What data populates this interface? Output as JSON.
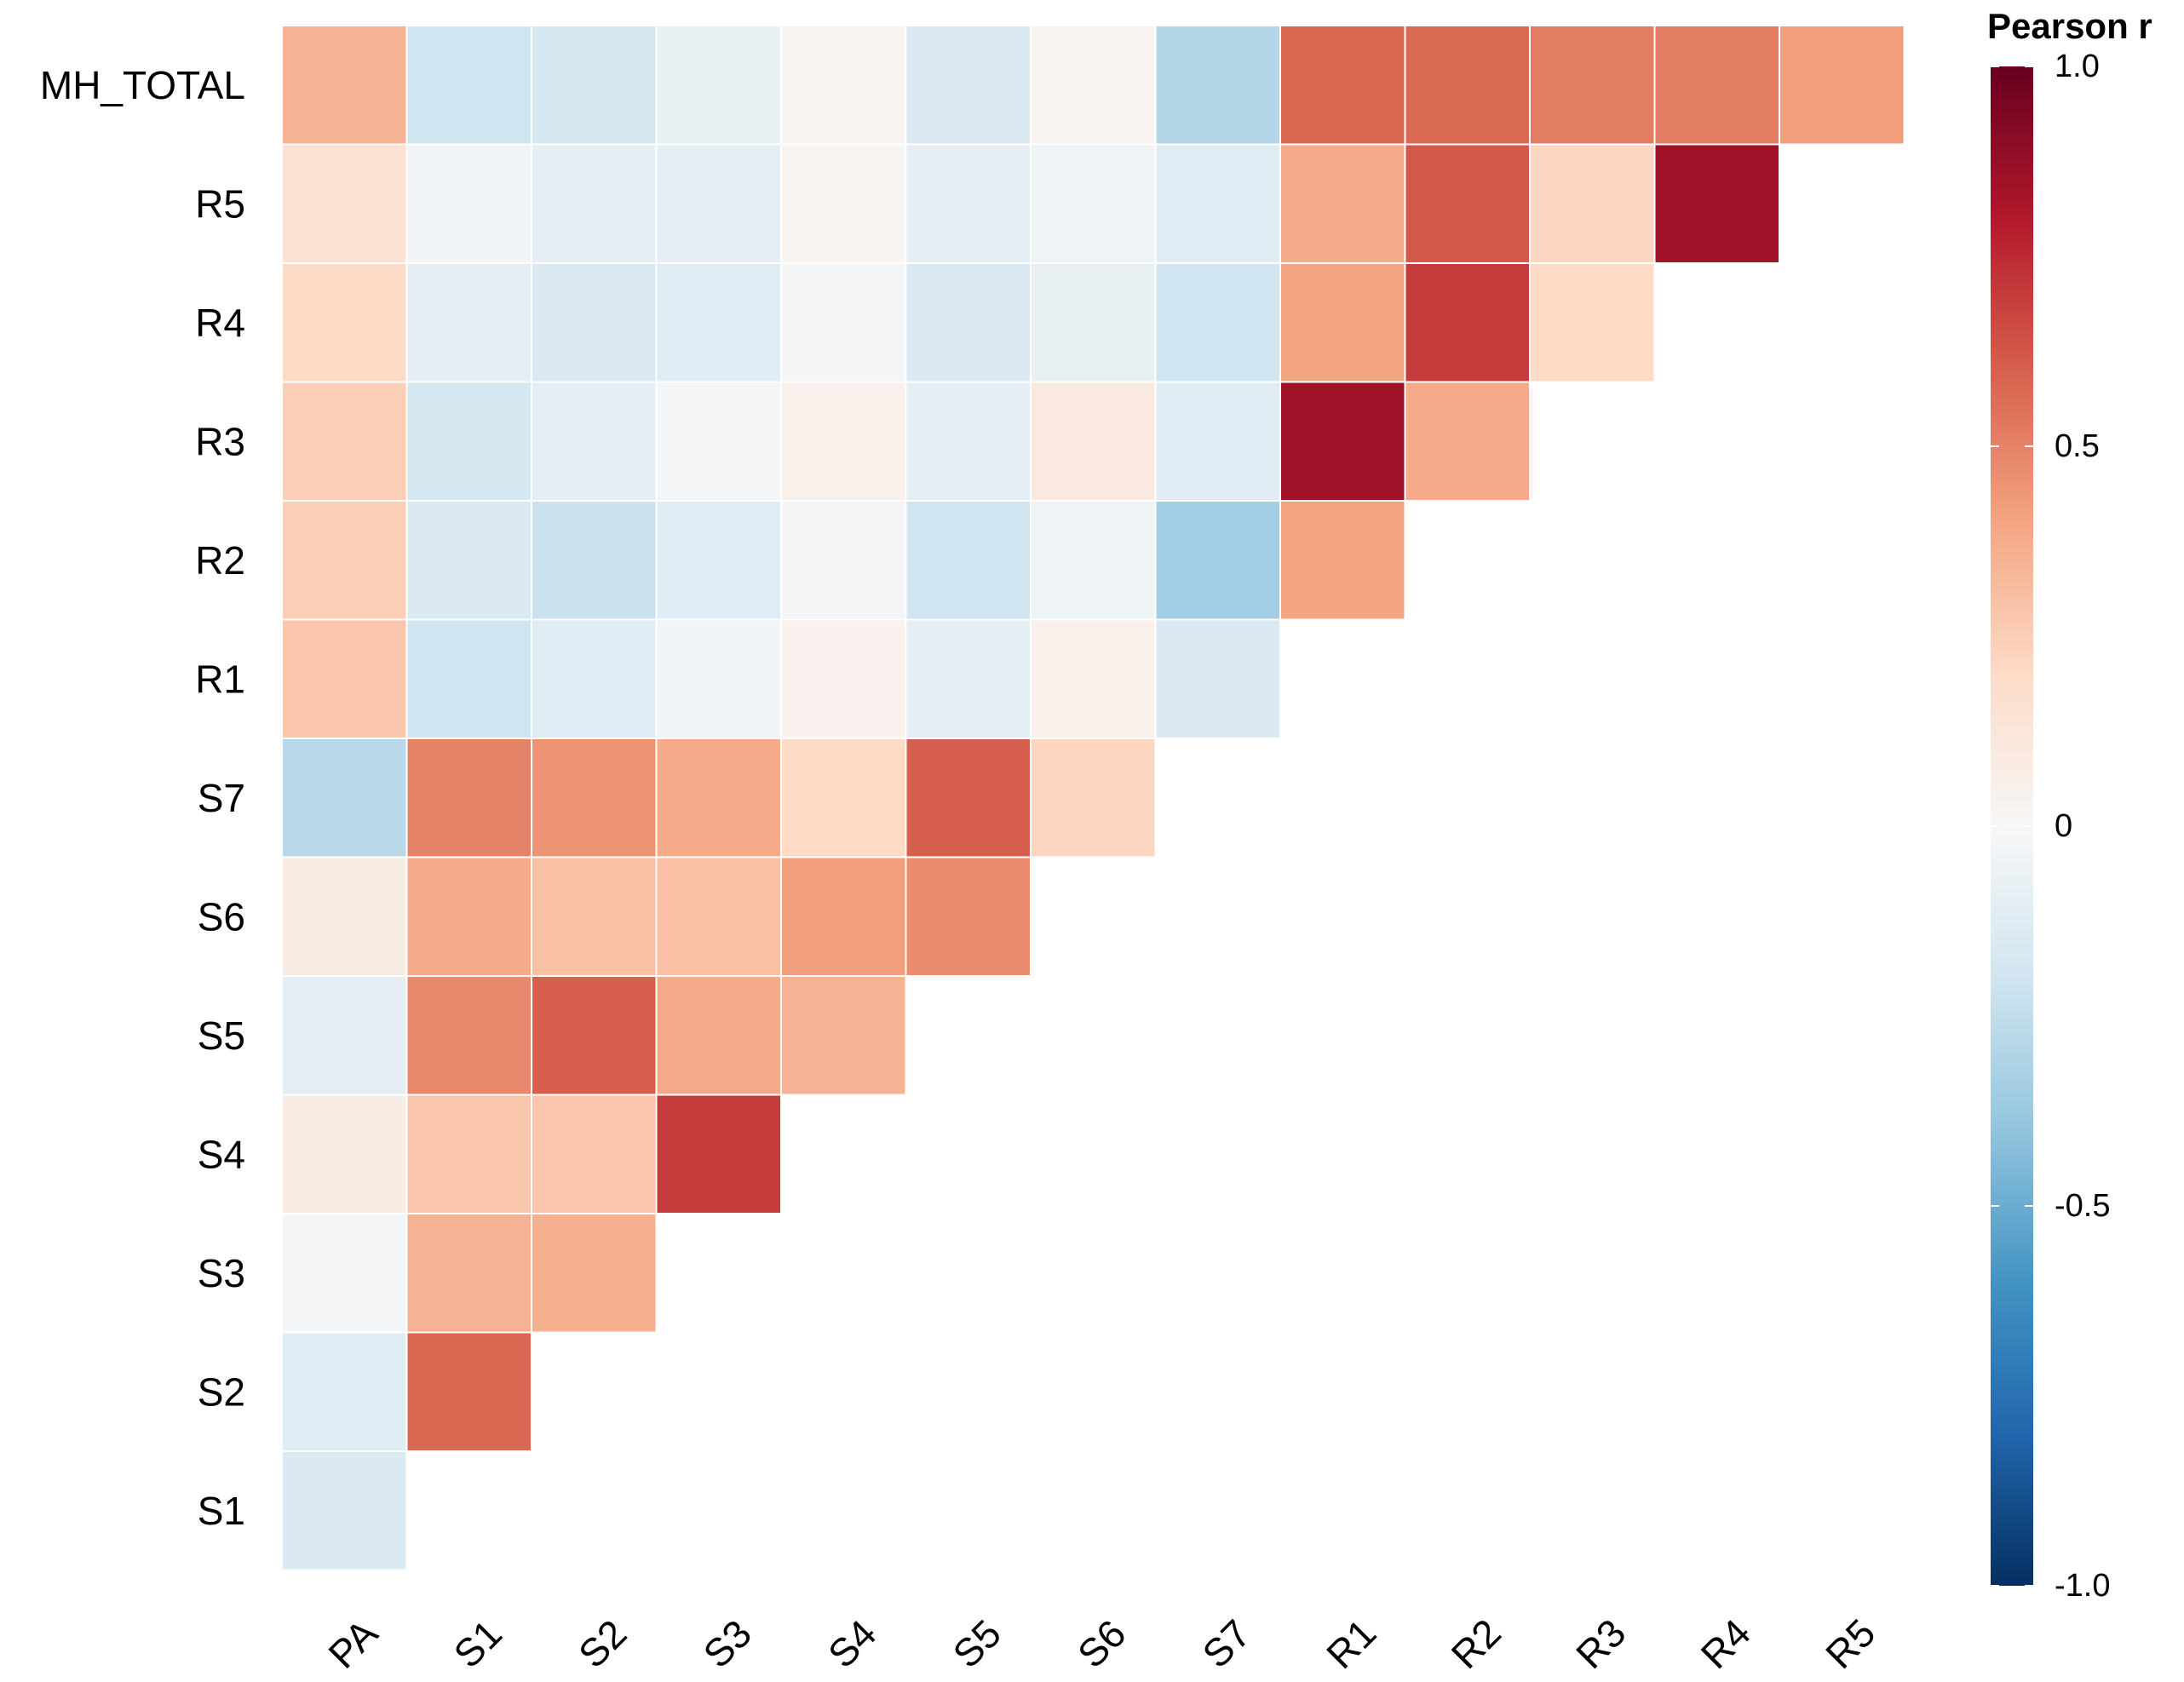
{
  "chart_data": {
    "type": "heatmap",
    "title": "",
    "xlabel": "",
    "ylabel": "",
    "columns": [
      "PA",
      "S1",
      "S2",
      "S3",
      "S4",
      "S5",
      "S6",
      "S7",
      "R1",
      "R2",
      "R3",
      "R4",
      "R5"
    ],
    "rows": [
      "MH_TOTAL",
      "R5",
      "R4",
      "R3",
      "R2",
      "R1",
      "S7",
      "S6",
      "S5",
      "S4",
      "S3",
      "S2",
      "S1"
    ],
    "values": [
      [
        0.35,
        -0.2,
        -0.18,
        -0.08,
        0.03,
        -0.15,
        0.03,
        -0.3,
        0.58,
        0.57,
        0.52,
        0.52,
        0.42
      ],
      [
        0.15,
        -0.03,
        -0.1,
        -0.1,
        0.02,
        -0.1,
        -0.05,
        -0.12,
        0.38,
        0.62,
        0.22,
        0.85,
        null
      ],
      [
        0.2,
        -0.1,
        -0.15,
        -0.12,
        -0.02,
        -0.15,
        -0.08,
        -0.2,
        0.4,
        0.7,
        0.2,
        null,
        null
      ],
      [
        0.25,
        -0.18,
        -0.1,
        -0.02,
        0.05,
        -0.1,
        0.1,
        -0.12,
        0.85,
        0.38,
        null,
        null,
        null
      ],
      [
        0.25,
        -0.15,
        -0.22,
        -0.12,
        -0.02,
        -0.2,
        -0.05,
        -0.35,
        0.4,
        null,
        null,
        null,
        null
      ],
      [
        0.28,
        -0.2,
        -0.12,
        -0.03,
        0.04,
        -0.1,
        0.05,
        -0.15,
        null,
        null,
        null,
        null,
        null
      ],
      [
        -0.28,
        0.5,
        0.45,
        0.38,
        0.2,
        0.6,
        0.22,
        null,
        null,
        null,
        null,
        null,
        null
      ],
      [
        0.08,
        0.38,
        0.3,
        0.3,
        0.42,
        0.47,
        null,
        null,
        null,
        null,
        null,
        null,
        null
      ],
      [
        -0.1,
        0.48,
        0.6,
        0.38,
        0.35,
        null,
        null,
        null,
        null,
        null,
        null,
        null,
        null
      ],
      [
        0.08,
        0.28,
        0.28,
        0.7,
        null,
        null,
        null,
        null,
        null,
        null,
        null,
        null,
        null
      ],
      [
        -0.02,
        0.35,
        0.36,
        null,
        null,
        null,
        null,
        null,
        null,
        null,
        null,
        null,
        null
      ],
      [
        -0.12,
        0.58,
        null,
        null,
        null,
        null,
        null,
        null,
        null,
        null,
        null,
        null,
        null
      ],
      [
        -0.15,
        null,
        null,
        null,
        null,
        null,
        null,
        null,
        null,
        null,
        null,
        null,
        null
      ]
    ],
    "color_scale": {
      "title": "Pearson r",
      "min": -1.0,
      "max": 1.0,
      "ticks": [
        "1.0",
        "0.5",
        "0",
        "-0.5",
        "-1.0"
      ],
      "tick_values": [
        1.0,
        0.5,
        0,
        -0.5,
        -1.0
      ],
      "stops": [
        "#053061",
        "#2166ac",
        "#4393c3",
        "#92c5de",
        "#d1e5f0",
        "#f7f7f7",
        "#fddbc7",
        "#f4a582",
        "#d6604d",
        "#b2182b",
        "#67001f"
      ]
    },
    "legend_position": "right",
    "grid": false
  }
}
